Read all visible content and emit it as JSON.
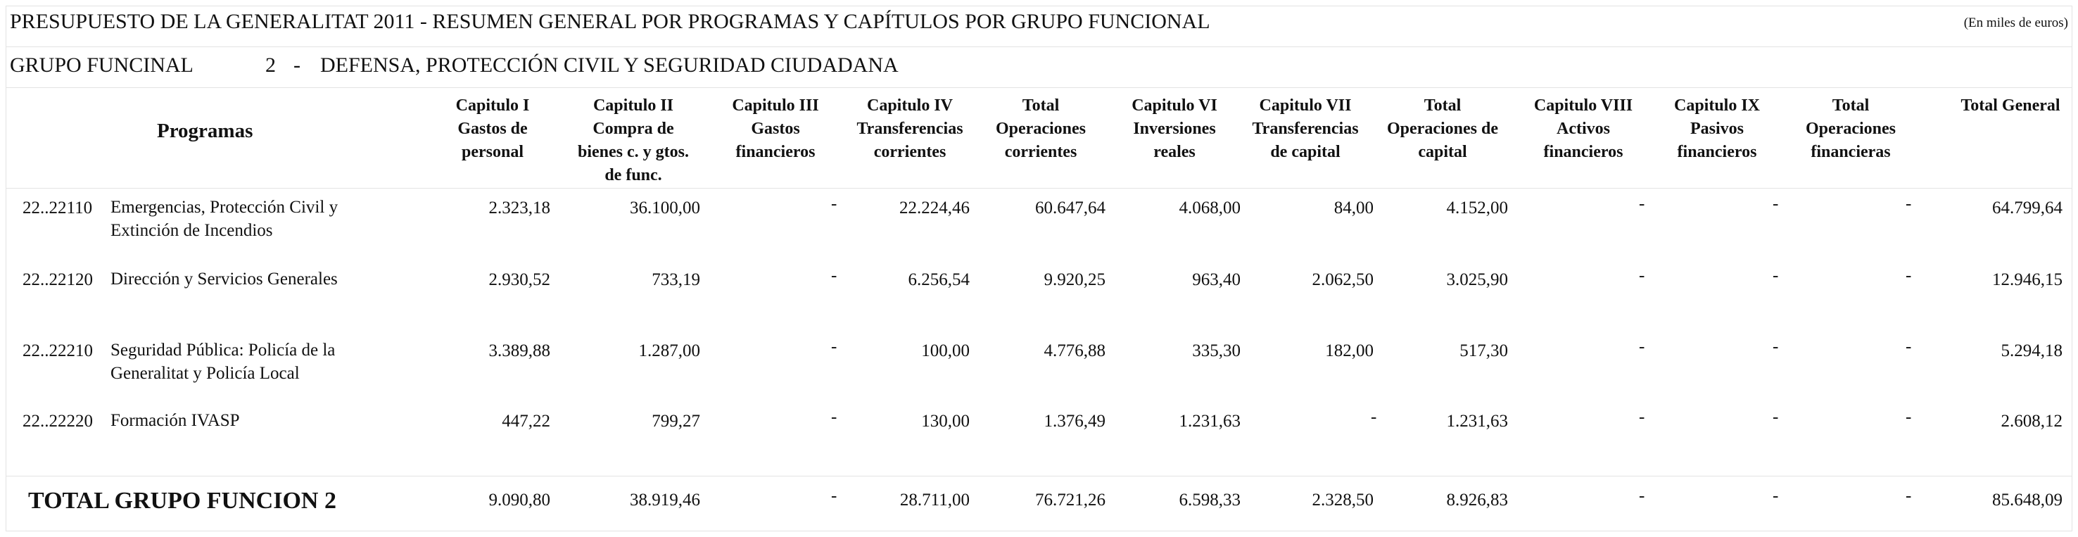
{
  "title": "PRESUPUESTO DE LA GENERALITAT 2011 - RESUMEN GENERAL POR PROGRAMAS Y CAPÍTULOS POR GRUPO FUNCIONAL",
  "units_note": "(En miles de euros)",
  "grupo": {
    "label": "GRUPO FUNCINAL",
    "number": "2",
    "dash": "-",
    "name": "DEFENSA, PROTECCIÓN CIVIL Y SEGURIDAD CIUDADANA"
  },
  "programas_header": "Programas",
  "columns": [
    {
      "lines": [
        "Capitulo I",
        "Gastos de",
        "personal"
      ]
    },
    {
      "lines": [
        "Capitulo II",
        "Compra de",
        "bienes c. y gtos.",
        "de func."
      ]
    },
    {
      "lines": [
        "Capitulo III",
        "Gastos",
        "financieros"
      ]
    },
    {
      "lines": [
        "Capitulo IV",
        "Transferencias",
        "corrientes"
      ]
    },
    {
      "lines": [
        "Total",
        "Operaciones",
        "corrientes"
      ]
    },
    {
      "lines": [
        "Capitulo VI",
        "Inversiones",
        "reales"
      ]
    },
    {
      "lines": [
        "Capitulo VII",
        "Transferencias",
        "de capital"
      ]
    },
    {
      "lines": [
        "Total",
        "Operaciones de",
        "capital"
      ]
    },
    {
      "lines": [
        "Capitulo VIII",
        "Activos",
        "financieros"
      ]
    },
    {
      "lines": [
        "Capitulo IX",
        "Pasivos",
        "financieros"
      ]
    },
    {
      "lines": [
        "Total",
        "Operaciones",
        "financieras"
      ]
    },
    {
      "lines": [
        "Total General"
      ]
    }
  ],
  "rows": [
    {
      "code": "22..22110",
      "name": [
        "Emergencias, Protección Civil y",
        "Extinción de Incendios"
      ],
      "values": [
        "2.323,18",
        "36.100,00",
        "-",
        "22.224,46",
        "60.647,64",
        "4.068,00",
        "84,00",
        "4.152,00",
        "-",
        "-",
        "-",
        "64.799,64"
      ]
    },
    {
      "code": "22..22120",
      "name": [
        "Dirección y Servicios Generales"
      ],
      "values": [
        "2.930,52",
        "733,19",
        "-",
        "6.256,54",
        "9.920,25",
        "963,40",
        "2.062,50",
        "3.025,90",
        "-",
        "-",
        "-",
        "12.946,15"
      ]
    },
    {
      "code": "22..22210",
      "name": [
        "Seguridad Pública: Policía de la",
        "Generalitat y Policía Local"
      ],
      "values": [
        "3.389,88",
        "1.287,00",
        "-",
        "100,00",
        "4.776,88",
        "335,30",
        "182,00",
        "517,30",
        "-",
        "-",
        "-",
        "5.294,18"
      ]
    },
    {
      "code": "22..22220",
      "name": [
        "Formación IVASP"
      ],
      "values": [
        "447,22",
        "799,27",
        "-",
        "130,00",
        "1.376,49",
        "1.231,63",
        "-",
        "1.231,63",
        "-",
        "-",
        "-",
        "2.608,12"
      ]
    }
  ],
  "total": {
    "label": "TOTAL GRUPO FUNCION  2",
    "values": [
      "9.090,80",
      "38.919,46",
      "-",
      "28.711,00",
      "76.721,26",
      "6.598,33",
      "2.328,50",
      "8.926,83",
      "-",
      "-",
      "-",
      "85.648,09"
    ]
  }
}
